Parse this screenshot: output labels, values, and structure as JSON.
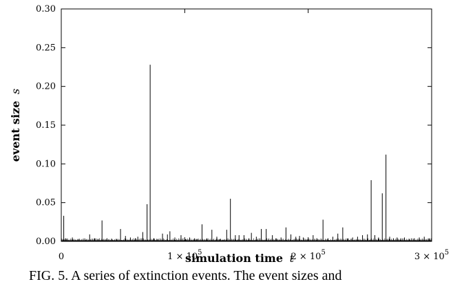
{
  "chart_data": {
    "type": "bar",
    "xlabel": "simulation time",
    "xlabel_var": "t",
    "ylabel": "event size",
    "ylabel_var": "s",
    "xlim": [
      0,
      300000
    ],
    "ylim": [
      0,
      0.3
    ],
    "y_ticks": [
      "0.00",
      "0.05",
      "0.10",
      "0.15",
      "0.20",
      "0.25",
      "0.30"
    ],
    "x_ticks": [
      {
        "value": 0,
        "label": "0"
      },
      {
        "value": 100000,
        "label": "1 × 10",
        "exp": "5"
      },
      {
        "value": 200000,
        "label": "2 × 10",
        "exp": "5"
      },
      {
        "value": 300000,
        "label": "3 × 10",
        "exp": "5"
      }
    ],
    "x": [
      2000,
      3500,
      5000,
      9000,
      14000,
      20000,
      23000,
      27000,
      30000,
      33000,
      37000,
      41000,
      45000,
      48000,
      52000,
      56000,
      60000,
      62000,
      66000,
      69500,
      72000,
      75000,
      78000,
      82000,
      86000,
      88000,
      92000,
      97000,
      101000,
      104000,
      108000,
      110000,
      114000,
      118000,
      122000,
      126000,
      128500,
      131000,
      134000,
      137000,
      141000,
      144000,
      148000,
      152000,
      154000,
      158000,
      162000,
      166000,
      171000,
      174000,
      178000,
      182000,
      186000,
      190000,
      193000,
      196000,
      200000,
      204000,
      207000,
      212000,
      216000,
      220000,
      224000,
      228000,
      232000,
      236000,
      240000,
      244000,
      248000,
      251000,
      254000,
      257000,
      260000,
      263000,
      266000,
      269000,
      272000,
      275000,
      278000,
      282000,
      286000,
      290000,
      294000,
      298000
    ],
    "values": [
      0.033,
      0.004,
      0.003,
      0.005,
      0.003,
      0.002,
      0.009,
      0.004,
      0.003,
      0.027,
      0.004,
      0.003,
      0.003,
      0.016,
      0.007,
      0.005,
      0.004,
      0.006,
      0.012,
      0.048,
      0.228,
      0.004,
      0.003,
      0.01,
      0.009,
      0.013,
      0.005,
      0.008,
      0.003,
      0.005,
      0.004,
      0.003,
      0.022,
      0.004,
      0.015,
      0.006,
      0.003,
      0.002,
      0.015,
      0.055,
      0.008,
      0.008,
      0.008,
      0.004,
      0.011,
      0.006,
      0.016,
      0.016,
      0.008,
      0.004,
      0.005,
      0.018,
      0.009,
      0.006,
      0.007,
      0.005,
      0.002,
      0.008,
      0.004,
      0.028,
      0.004,
      0.006,
      0.01,
      0.018,
      0.004,
      0.005,
      0.006,
      0.008,
      0.009,
      0.079,
      0.008,
      0.005,
      0.062,
      0.112,
      0.006,
      0.004,
      0.005,
      0.004,
      0.005,
      0.003,
      0.004,
      0.005,
      0.006,
      0.004
    ]
  },
  "caption": "FIG. 5. A series of extinction events. The event sizes and"
}
